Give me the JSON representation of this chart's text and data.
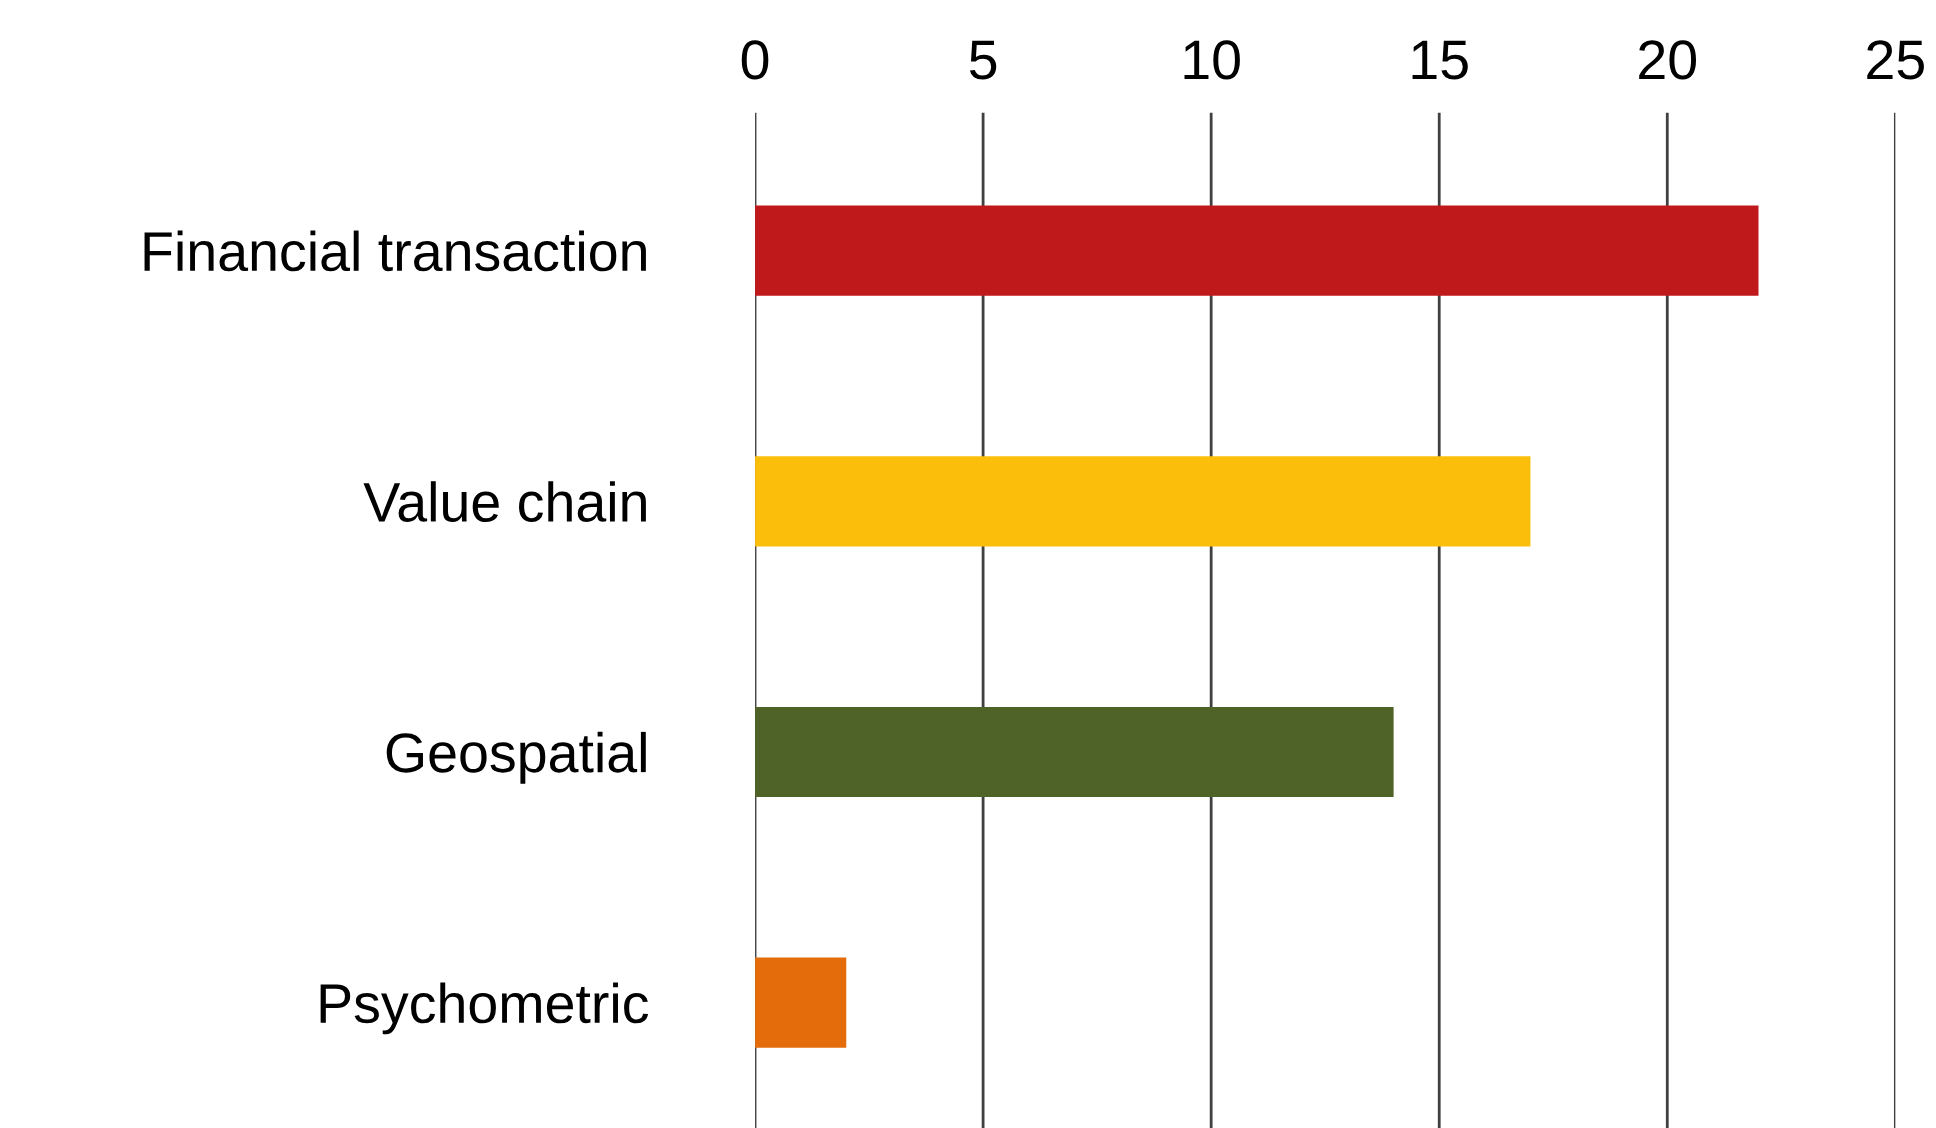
{
  "chart_data": {
    "type": "bar",
    "orientation": "horizontal",
    "categories": [
      "Financial transaction",
      "Value chain",
      "Geospatial",
      "Psychometric"
    ],
    "values": [
      22,
      17,
      14,
      2
    ],
    "colors": [
      "#c0191b",
      "#fbbf0b",
      "#4f6228",
      "#e46c0a"
    ],
    "xlim": [
      0,
      25
    ],
    "xticks": [
      0,
      5,
      10,
      15,
      20,
      25
    ],
    "grid": "x",
    "legend": false
  }
}
